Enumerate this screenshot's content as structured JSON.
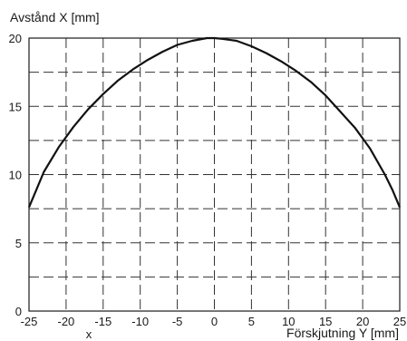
{
  "chart_data": {
    "type": "line",
    "ylabel": "Avstånd  X [mm]",
    "xlabel": "Förskjutning Y [mm]",
    "xlim": [
      -25,
      25
    ],
    "ylim": [
      0,
      20
    ],
    "x_ticks": [
      -25,
      -20,
      -15,
      -10,
      -5,
      0,
      5,
      10,
      15,
      20,
      25
    ],
    "y_ticks": [
      0,
      5,
      10,
      15,
      20
    ],
    "grid": true,
    "grid_style": "dashed",
    "series": [
      {
        "x": [
          -25,
          -24,
          -23,
          -21,
          -19,
          -17,
          -15,
          -13,
          -11,
          -9,
          -7,
          -5,
          -3,
          -1,
          0,
          1,
          3,
          5,
          7,
          9,
          11,
          13,
          15,
          17,
          19,
          21,
          23,
          24,
          25
        ],
        "y": [
          7.6,
          8.9,
          10.2,
          12.0,
          13.5,
          14.8,
          15.9,
          16.9,
          17.7,
          18.4,
          19.0,
          19.5,
          19.8,
          20.0,
          20.0,
          19.95,
          19.8,
          19.4,
          18.9,
          18.3,
          17.6,
          16.8,
          15.8,
          14.6,
          13.4,
          11.9,
          10.0,
          8.9,
          7.6
        ]
      }
    ],
    "footer_symbol": "x"
  }
}
